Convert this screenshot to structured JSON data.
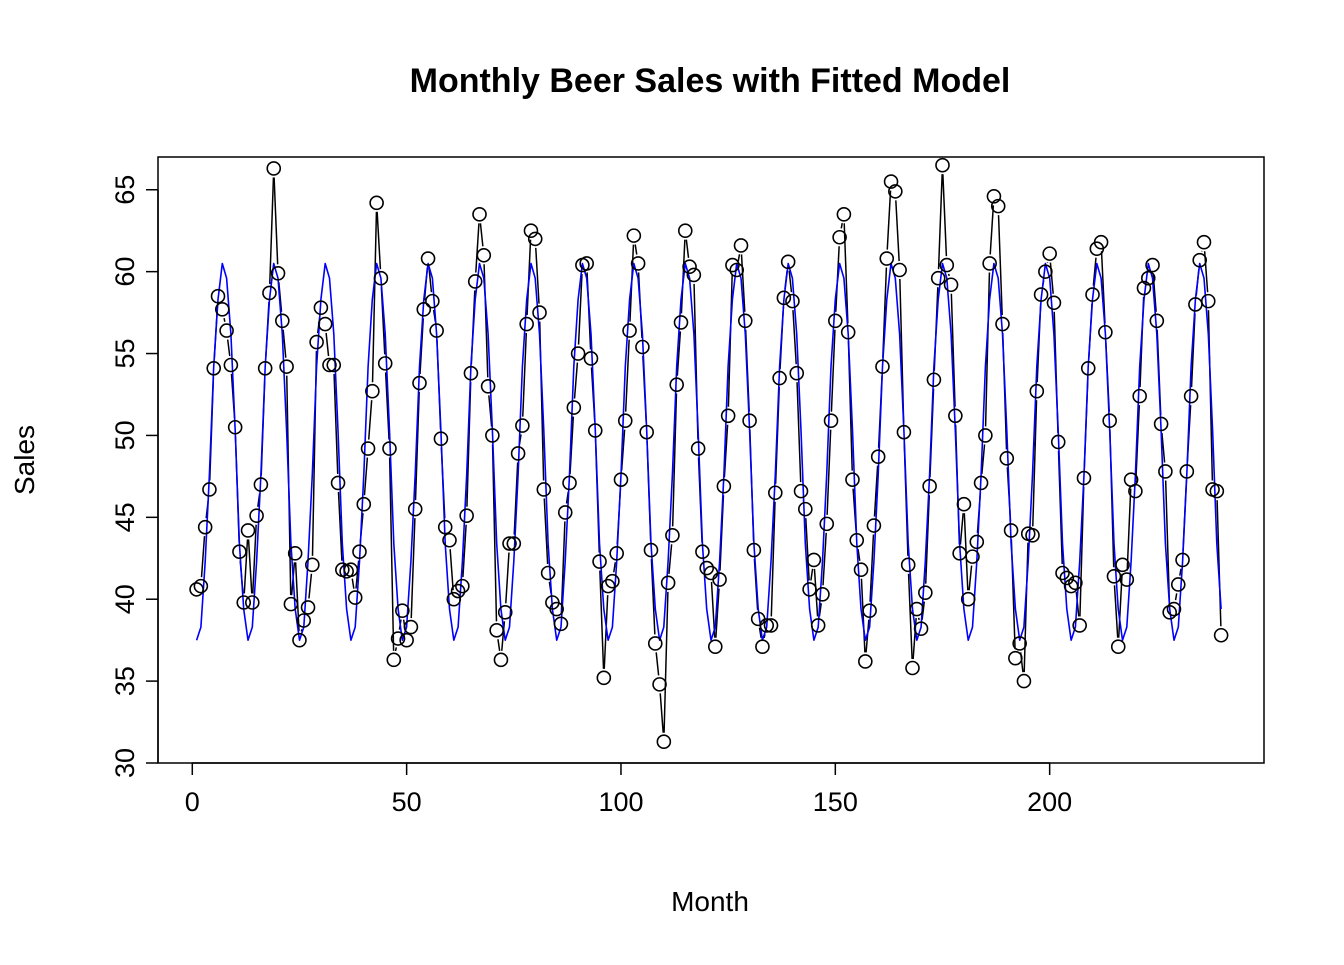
{
  "chart_data": {
    "type": "line",
    "title": "Monthly Beer Sales with Fitted Model",
    "xlabel": "Month",
    "ylabel": "Sales",
    "xlim": [
      -8,
      250
    ],
    "ylim": [
      30,
      67
    ],
    "xticks": [
      0,
      50,
      100,
      150,
      200
    ],
    "yticks": [
      30,
      35,
      40,
      45,
      50,
      55,
      60,
      65
    ],
    "grid": false,
    "legend": "none",
    "series": [
      {
        "style": "points-and-line",
        "color": "#000000",
        "x": [
          1,
          2,
          3,
          4,
          5,
          6,
          7,
          8,
          9,
          10,
          11,
          12,
          13,
          14,
          15,
          16,
          17,
          18,
          19,
          20,
          21,
          22,
          23,
          24,
          25,
          26,
          27,
          28,
          29,
          30,
          31,
          32,
          33,
          34,
          35,
          36,
          37,
          38,
          39,
          40,
          41,
          42,
          43,
          44,
          45,
          46,
          47,
          48,
          49,
          50,
          51,
          52,
          53,
          54,
          55,
          56,
          57,
          58,
          59,
          60,
          61,
          62,
          63,
          64,
          65,
          66,
          67,
          68,
          69,
          70,
          71,
          72,
          73,
          74,
          75,
          76,
          77,
          78,
          79,
          80,
          81,
          82,
          83,
          84,
          85,
          86,
          87,
          88,
          89,
          90,
          91,
          92,
          93,
          94,
          95,
          96,
          97,
          98,
          99,
          100,
          101,
          102,
          103,
          104,
          105,
          106,
          107,
          108,
          109,
          110,
          111,
          112,
          113,
          114,
          115,
          116,
          117,
          118,
          119,
          120,
          121,
          122,
          123,
          124,
          125,
          126,
          127,
          128,
          129,
          130,
          131,
          132,
          133,
          134,
          135,
          136,
          137,
          138,
          139,
          140,
          141,
          142,
          143,
          144,
          145,
          146,
          147,
          148,
          149,
          150,
          151,
          152,
          153,
          154,
          155,
          156,
          157,
          158,
          159,
          160,
          161,
          162,
          163,
          164,
          165,
          166,
          167,
          168,
          169,
          170,
          171,
          172,
          173,
          174,
          175,
          176,
          177,
          178,
          179,
          180,
          181,
          182,
          183,
          184,
          185,
          186,
          187,
          188,
          189,
          190,
          191,
          192,
          193,
          194,
          195,
          196,
          197,
          198,
          199,
          200,
          201,
          202,
          203,
          204,
          205,
          206,
          207,
          208,
          209,
          210,
          211,
          212,
          213,
          214,
          215,
          216,
          217,
          218,
          219,
          220,
          221,
          222,
          223,
          224,
          225,
          226,
          227,
          228,
          229,
          230,
          231,
          232,
          233,
          234,
          235,
          236,
          237,
          238,
          239,
          240
        ],
        "y": [
          40.6,
          40.8,
          44.4,
          46.7,
          54.1,
          58.5,
          57.7,
          56.4,
          54.3,
          50.5,
          42.9,
          39.8,
          44.2,
          39.8,
          45.1,
          47.0,
          54.1,
          58.7,
          66.3,
          59.9,
          57.0,
          54.2,
          39.7,
          42.8,
          37.5,
          38.7,
          39.5,
          42.1,
          55.7,
          57.8,
          56.8,
          54.3,
          54.3,
          47.1,
          41.8,
          41.7,
          41.8,
          40.1,
          42.9,
          45.8,
          49.2,
          52.7,
          64.2,
          59.6,
          54.4,
          49.2,
          36.3,
          37.6,
          39.3,
          37.5,
          38.3,
          45.5,
          53.2,
          57.7,
          60.8,
          58.2,
          56.4,
          49.8,
          44.4,
          43.6,
          40.0,
          40.5,
          40.8,
          45.1,
          53.8,
          59.4,
          63.5,
          61.0,
          53.0,
          50.0,
          38.1,
          36.3,
          39.2,
          43.4,
          43.4,
          48.9,
          50.6,
          56.8,
          62.5,
          62.0,
          57.5,
          46.7,
          41.6,
          39.8,
          39.4,
          38.5,
          45.3,
          47.1,
          51.7,
          55.0,
          60.4,
          60.5,
          54.7,
          50.3,
          42.3,
          35.2,
          40.8,
          41.1,
          42.8,
          47.3,
          50.9,
          56.4,
          62.2,
          60.5,
          55.4,
          50.2,
          43.0,
          37.3,
          34.8,
          31.3,
          41.0,
          43.9,
          53.1,
          56.9,
          62.5,
          60.3,
          59.8,
          49.2,
          42.9,
          41.9,
          41.6,
          37.1,
          41.2,
          46.9,
          51.2,
          60.4,
          60.1,
          61.6,
          57.0,
          50.9,
          43.0,
          38.8,
          37.1,
          38.4,
          38.4,
          46.5,
          53.5,
          58.4,
          60.6,
          58.2,
          53.8,
          46.6,
          45.5,
          40.6,
          42.4,
          38.4,
          40.3,
          44.6,
          50.9,
          57.0,
          62.1,
          63.5,
          56.3,
          47.3,
          43.6,
          41.8,
          36.2,
          39.3,
          44.5,
          48.7,
          54.2,
          60.8,
          65.5,
          64.9,
          60.1,
          50.2,
          42.1,
          35.8,
          39.4,
          38.2,
          40.4,
          46.9,
          53.4,
          59.6,
          66.5,
          60.4,
          59.2,
          51.2,
          42.8,
          45.8,
          40.0,
          42.6,
          43.5,
          47.1,
          50.0,
          60.5,
          64.6,
          64.0,
          56.8,
          48.6,
          44.2,
          36.4,
          37.3,
          35.0,
          44.0,
          43.9,
          52.7,
          58.6,
          60.0,
          61.1,
          58.1,
          49.6,
          41.6,
          41.3,
          40.8,
          41.0,
          38.4,
          47.4,
          54.1,
          58.6,
          61.4,
          61.8,
          56.3,
          50.9,
          41.4,
          37.1,
          42.1,
          41.2,
          47.3,
          46.6,
          52.4,
          59.0,
          59.6,
          60.4,
          57.0,
          50.7,
          47.8,
          39.2,
          39.4,
          40.9,
          42.4,
          47.8,
          52.4,
          58.0,
          60.7,
          61.8,
          58.2,
          46.7,
          46.6,
          37.8
        ]
      },
      {
        "style": "line",
        "color": "#0000ff",
        "period": 12,
        "x_start": 1,
        "x_end": 240,
        "cycle": [
          37.5,
          38.3,
          42.3,
          47.6,
          54.2,
          58.3,
          60.5,
          59.6,
          56.2,
          50.3,
          43.4,
          39.4
        ]
      }
    ]
  }
}
